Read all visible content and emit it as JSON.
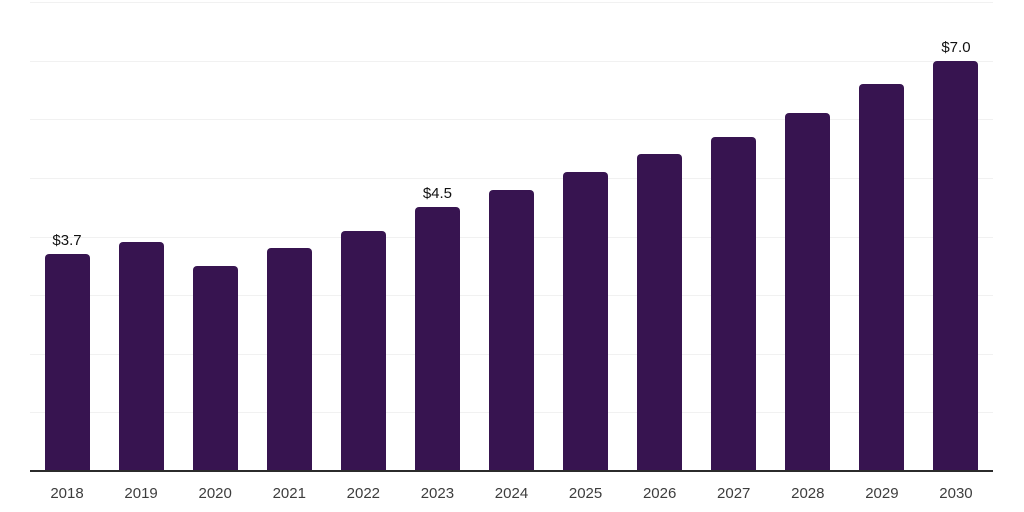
{
  "chart_data": {
    "type": "bar",
    "title": "",
    "xlabel": "",
    "ylabel": "",
    "categories": [
      "2018",
      "2019",
      "2020",
      "2021",
      "2022",
      "2023",
      "2024",
      "2025",
      "2026",
      "2027",
      "2028",
      "2029",
      "2030"
    ],
    "values": [
      3.7,
      3.9,
      3.5,
      3.8,
      4.1,
      4.5,
      4.8,
      5.1,
      5.4,
      5.7,
      6.1,
      6.6,
      7.0
    ],
    "bar_labels": [
      "$3.7",
      "",
      "",
      "",
      "",
      "$4.5",
      "",
      "",
      "",
      "",
      "",
      "",
      "$7.0"
    ],
    "ylim": [
      0,
      8
    ],
    "gridline_step": 1,
    "grid": true,
    "legend": "none",
    "y_axis_tick_labels_visible": false,
    "colors": {
      "bar": "#371450",
      "gridline": "#f1f1f1",
      "axis_line": "#2b2b2b",
      "bar_label_text": "#111111",
      "tick_label_text": "#3d3d3d",
      "background": "#ffffff"
    }
  }
}
